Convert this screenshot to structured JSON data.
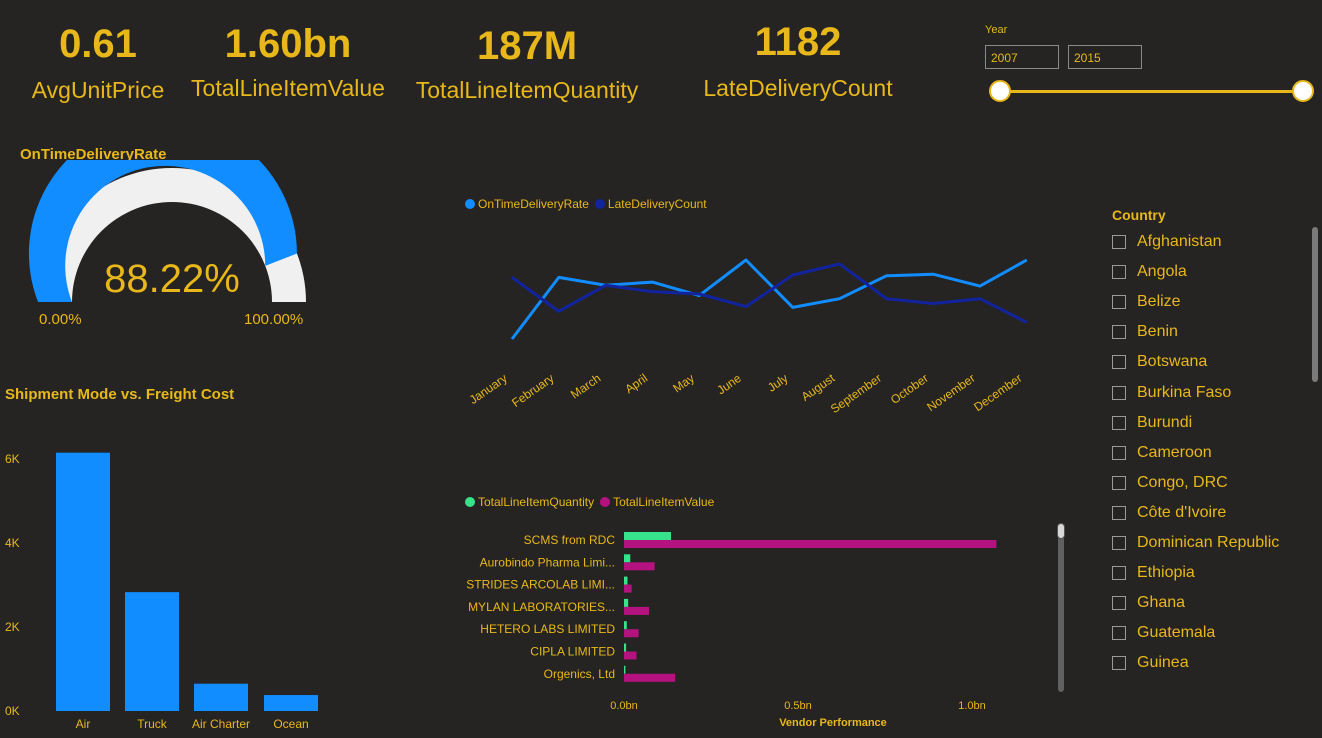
{
  "kpis": {
    "avg_unit_price": {
      "value": "0.61",
      "label": "AvgUnitPrice"
    },
    "total_line_item_value": {
      "value": "1.60bn",
      "label": "TotalLineItemValue"
    },
    "total_line_item_quantity": {
      "value": "187M",
      "label": "TotalLineItemQuantity"
    },
    "late_delivery_count": {
      "value": "1182",
      "label": "LateDeliveryCount"
    }
  },
  "year_slicer": {
    "label": "Year",
    "from": "2007",
    "to": "2015"
  },
  "country_slicer": {
    "title": "Country",
    "items": [
      "Afghanistan",
      "Angola",
      "Belize",
      "Benin",
      "Botswana",
      "Burkina Faso",
      "Burundi",
      "Cameroon",
      "Congo, DRC",
      "Côte d'Ivoire",
      "Dominican Republic",
      "Ethiopia",
      "Ghana",
      "Guatemala",
      "Guinea"
    ]
  },
  "colors": {
    "background": "#252423",
    "accent": "#e8b81a",
    "blue": "#118dff",
    "navy": "#12239e",
    "green": "#36e38a",
    "magenta": "#b4127f",
    "gauge_remainder": "#f0f0f0"
  },
  "chart_data": [
    {
      "type": "gauge",
      "title": "OnTimeDeliveryRate",
      "value": 88.22,
      "value_label": "88.22%",
      "min_label": "0.00%",
      "max_label": "100.00%",
      "range": [
        0,
        100
      ]
    },
    {
      "type": "line",
      "title": "",
      "categories": [
        "January",
        "February",
        "March",
        "April",
        "May",
        "June",
        "July",
        "August",
        "September",
        "October",
        "November",
        "December"
      ],
      "series": [
        {
          "name": "OnTimeDeliveryRate",
          "color": "#118dff",
          "values": [
            0.0,
            0.78,
            0.68,
            0.72,
            0.55,
            1.0,
            0.4,
            0.51,
            0.8,
            0.82,
            0.67,
            1.0
          ]
        },
        {
          "name": "LateDeliveryCount",
          "color": "#12239e",
          "values": [
            0.78,
            0.35,
            0.68,
            0.6,
            0.57,
            0.41,
            0.81,
            0.95,
            0.51,
            0.45,
            0.51,
            0.21
          ]
        }
      ],
      "legend": "top-left",
      "yaxis_visible": false
    },
    {
      "type": "bar",
      "title": "Shipment Mode vs. Freight Cost",
      "categories": [
        "Air",
        "Truck",
        "Air Charter",
        "Ocean"
      ],
      "values": [
        6150,
        2830,
        650,
        380
      ],
      "ylim": [
        0,
        6000
      ],
      "yticks": [
        {
          "v": 0,
          "label": "0K"
        },
        {
          "v": 2000,
          "label": "2K"
        },
        {
          "v": 4000,
          "label": "4K"
        },
        {
          "v": 6000,
          "label": "6K"
        }
      ],
      "color": "#118dff"
    },
    {
      "type": "bar",
      "orientation": "horizontal",
      "title": "Vendor Performance",
      "categories": [
        "SCMS from RDC",
        "Aurobindo Pharma Limi...",
        "STRIDES ARCOLAB LIMI...",
        "MYLAN LABORATORIES...",
        "HETERO LABS LIMITED",
        "CIPLA LIMITED",
        "Orgenics, Ltd"
      ],
      "series": [
        {
          "name": "TotalLineItemQuantity",
          "color": "#36e38a",
          "values": [
            0.135,
            0.018,
            0.01,
            0.012,
            0.008,
            0.006,
            0.004
          ]
        },
        {
          "name": "TotalLineItemValue",
          "color": "#b4127f",
          "values": [
            1.07,
            0.088,
            0.022,
            0.072,
            0.042,
            0.036,
            0.147
          ]
        }
      ],
      "xlim": [
        0,
        1.0
      ],
      "xticks": [
        {
          "v": 0,
          "label": "0.0bn"
        },
        {
          "v": 0.5,
          "label": "0.5bn"
        },
        {
          "v": 1.0,
          "label": "1.0bn"
        }
      ],
      "legend": "top-left"
    }
  ]
}
